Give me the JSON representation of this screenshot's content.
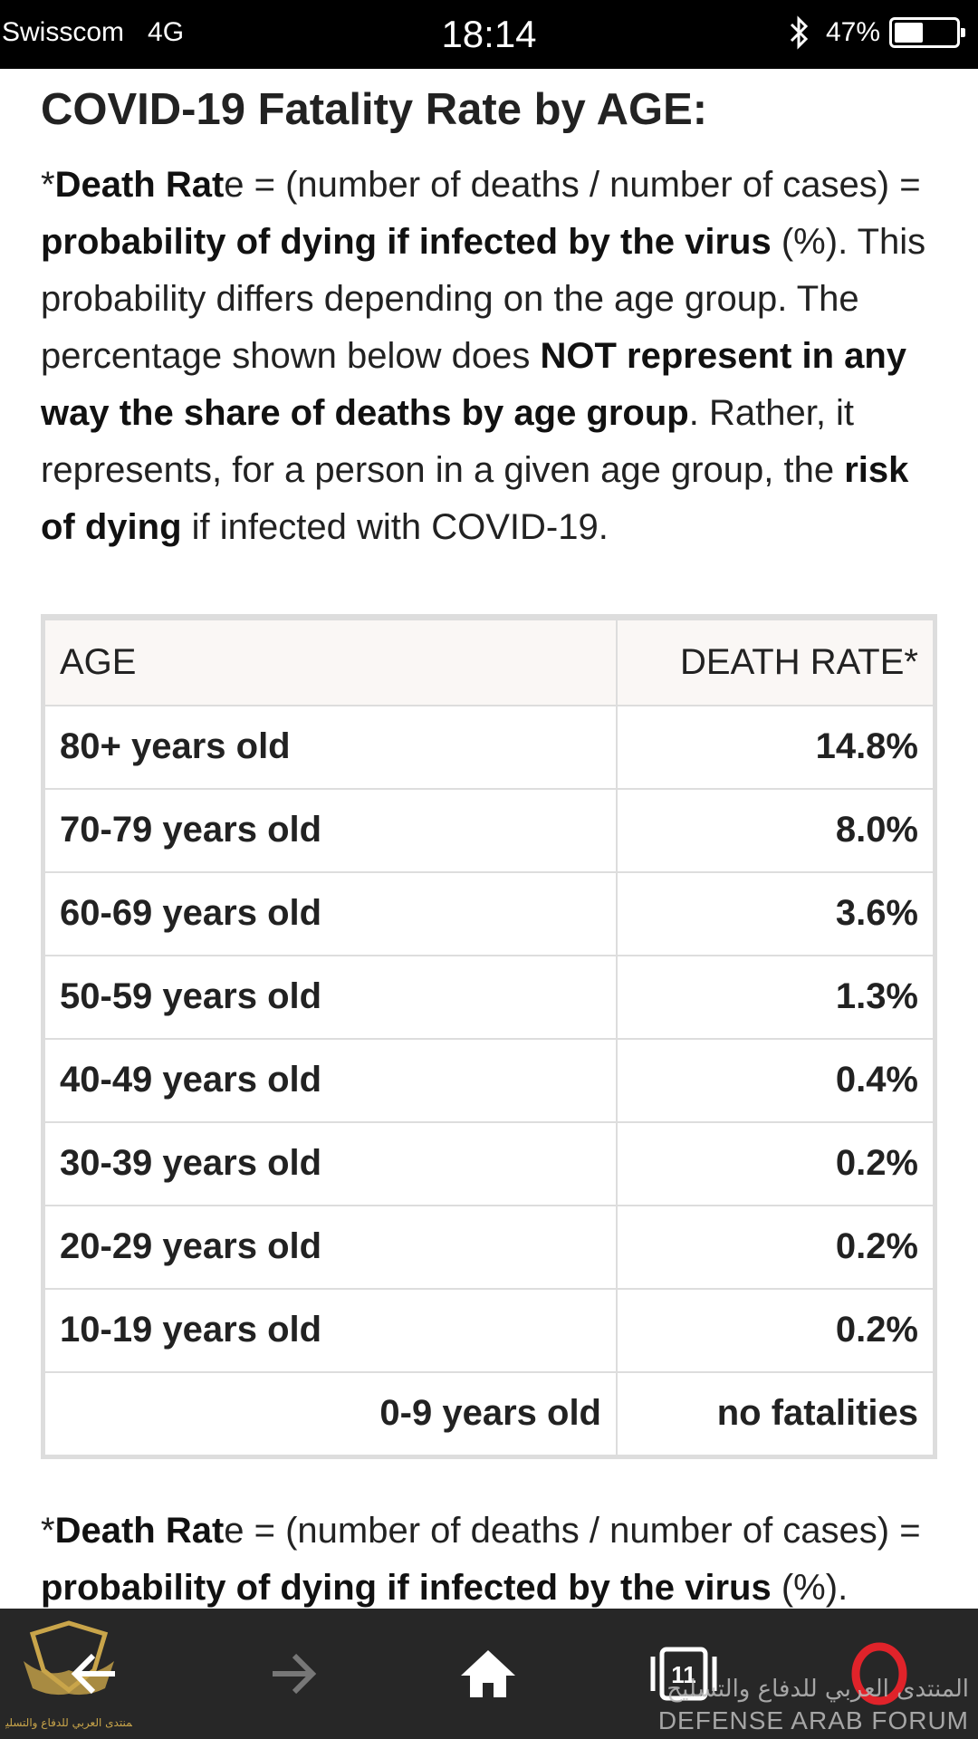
{
  "status_bar": {
    "carrier": "Swisscom",
    "network": "4G",
    "time": "18:14",
    "battery_percent": "47%",
    "battery_level": 0.47
  },
  "article": {
    "title": "COVID-19 Fatality Rate by AGE:",
    "intro": {
      "p1_star": "*",
      "p1_bold1": "Death Rat",
      "p1_text1": "e = (number of deaths / number of cases) = ",
      "p1_bold2": "probability of dying if infected by the virus",
      "p1_text2": " (%). This probability differs depending on the age group. The percentage shown below does ",
      "p1_bold3": "NOT represent in any way the share of deaths by age group",
      "p1_text3": ". Rather, it represents, for a person in a given age group, the ",
      "p1_bold4": "risk of dying",
      "p1_text4": " if infected with COVID-19."
    },
    "table": {
      "headers": {
        "age": "AGE",
        "rate": "DEATH RATE*"
      },
      "rows": [
        {
          "age": "80+ years old",
          "rate": "14.8%"
        },
        {
          "age": "70-79 years old",
          "rate": "8.0%"
        },
        {
          "age": "60-69 years old",
          "rate": "3.6%"
        },
        {
          "age": "50-59 years old",
          "rate": "1.3%"
        },
        {
          "age": "40-49 years old",
          "rate": "0.4%"
        },
        {
          "age": "30-39 years old",
          "rate": "0.2%"
        },
        {
          "age": "20-29 years old",
          "rate": "0.2%"
        },
        {
          "age": "10-19 years old",
          "rate": "0.2%"
        },
        {
          "age": "0-9 years old",
          "rate": "no fatalities"
        }
      ]
    },
    "footnote": {
      "star": "*",
      "bold1": "Death Rat",
      "text1": "e = (number of deaths / number of cases) = ",
      "bold2": "probability of dying if infected by the virus",
      "text2": " (%)."
    }
  },
  "bottom_nav": {
    "back_icon": "arrow-left-icon",
    "forward_icon": "arrow-right-icon",
    "home_icon": "home-icon",
    "tabs_icon": "tabs-icon",
    "tabs_count": "11",
    "menu_icon": "opera-o-icon"
  },
  "watermark": {
    "arabic": "المنتدى العربي للدفاع والتسليح",
    "english": "DEFENSE ARAB FORUM",
    "logo_arabic": "المنتدى العربي للدفاع والتسليح"
  },
  "colors": {
    "status_bar_bg": "#000000",
    "bottom_bar_bg": "#272727",
    "table_border": "#dddddd",
    "table_header_bg": "#faf7f5",
    "opera_red": "#e0232a"
  }
}
